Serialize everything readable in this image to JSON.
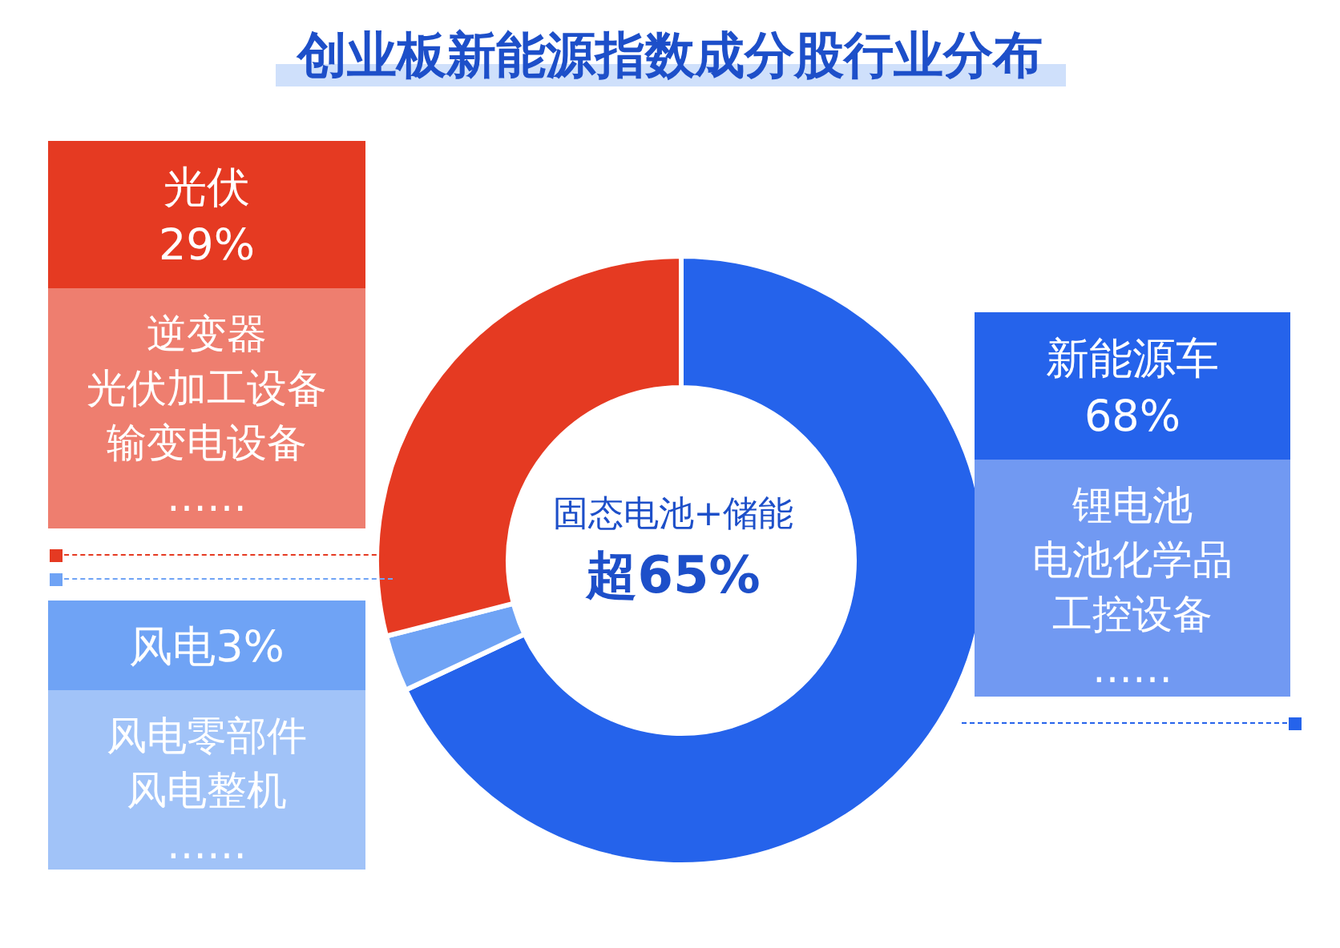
{
  "chart_data": {
    "type": "donut",
    "title": "创业板新能源指数成分股行业分布",
    "categories": [
      "新能源车",
      "风电",
      "光伏"
    ],
    "values": [
      68,
      3,
      29
    ],
    "value_labels": [
      "68%",
      "3%",
      "29%"
    ],
    "colors": [
      "#2563eb",
      "#6fa3f5",
      "#e53a22"
    ],
    "annotations": [
      "固态电池+储能",
      "超65%",
      "锂电池",
      "电池化学品",
      "工控设备",
      "……",
      "风电零部件",
      "风电整机",
      "……",
      "逆变器",
      "光伏加工设备",
      "输变电设备",
      "……"
    ]
  }
}
